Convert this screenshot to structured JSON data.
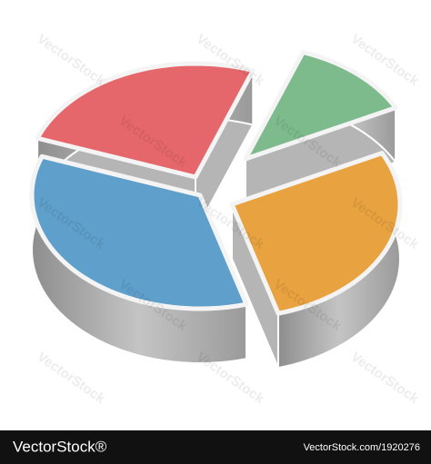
{
  "chart_data": {
    "type": "pie",
    "values": [
      25,
      12,
      28,
      35
    ],
    "colors": [
      "#e5676b",
      "#7dba8c",
      "#e8a23f",
      "#5f9fcb"
    ]
  },
  "watermark": "VectorStock",
  "footer": {
    "logo": "VectorStock®",
    "id": "VectorStock.com/1920276"
  }
}
